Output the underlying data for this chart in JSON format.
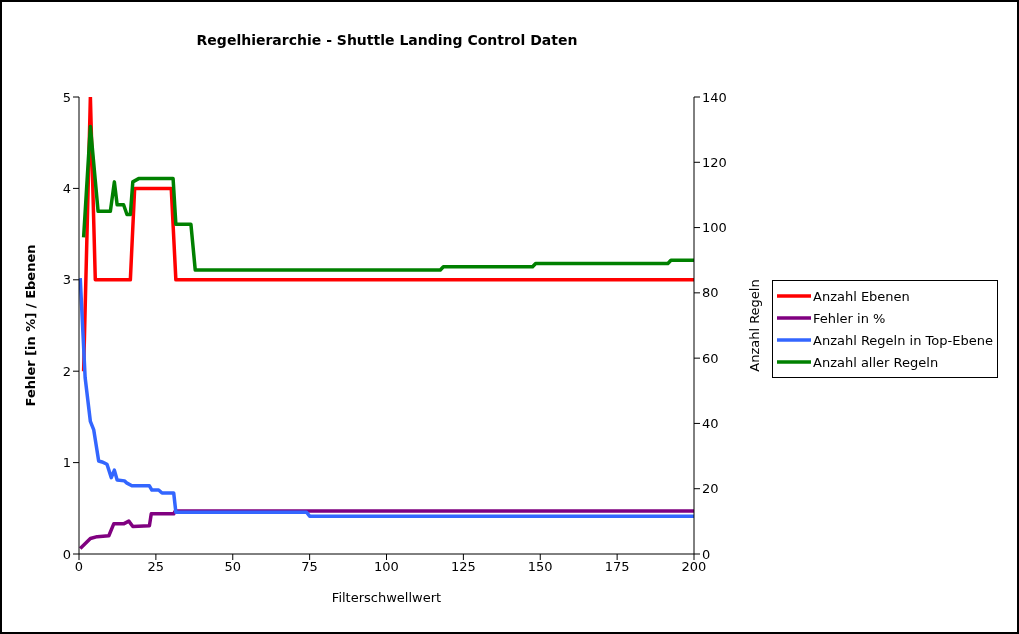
{
  "chart_data": {
    "type": "line",
    "title": "Regelhierarchie - Shuttle Landing Control Daten",
    "xlabel": "Filterschwellwert",
    "ylabel": "Fehler [in %] / Ebenen",
    "y2label": "Anzahl Regeln",
    "xlim": [
      0,
      200
    ],
    "xticks": [
      0,
      25,
      50,
      75,
      100,
      125,
      150,
      175,
      200
    ],
    "ylim": [
      0,
      5
    ],
    "yticks": [
      0,
      1,
      2,
      3,
      4,
      5
    ],
    "y2lim": [
      0,
      140
    ],
    "y2ticks": [
      0,
      20,
      40,
      60,
      80,
      100,
      120,
      140
    ],
    "legend": "right",
    "marker": "none",
    "series": [
      {
        "name": "Anzahl Ebenen",
        "color": "#ff0000",
        "x": [
          1.5,
          3.7,
          5.3,
          16.7,
          18.1,
          30,
          31.5,
          200
        ],
        "values": [
          2,
          5,
          3,
          3,
          4,
          4,
          3,
          3
        ]
      },
      {
        "name": "Fehler in %",
        "color": "#800080",
        "x": [
          0.4,
          3.7,
          5.9,
          9.7,
          11.3,
          14.5,
          16.2,
          17.5,
          22.9,
          23.5,
          30.8,
          31.3,
          200
        ],
        "values": [
          0.06,
          0.17,
          0.19,
          0.2,
          0.33,
          0.33,
          0.36,
          0.3,
          0.31,
          0.44,
          0.44,
          0.47,
          0.47
        ]
      },
      {
        "name": "Anzahl Regeln in Top-Ebene",
        "color": "#3366ff",
        "axis": "y2",
        "x": [
          0.4,
          2,
          3.7,
          4.8,
          6.4,
          7.5,
          9.1,
          10.5,
          11.5,
          12.4,
          14.8,
          15.6,
          17.2,
          22.9,
          23.7,
          25.9,
          27,
          30.8,
          31.5,
          74,
          75,
          200
        ],
        "values": [
          84.5,
          54,
          40.6,
          38,
          28.5,
          28.2,
          27.5,
          23.4,
          25.7,
          22.7,
          22.4,
          21.7,
          20.9,
          20.9,
          19.6,
          19.6,
          18.7,
          18.7,
          12.8,
          12.8,
          11.6,
          11.6
        ]
      },
      {
        "name": "Anzahl aller Regeln",
        "color": "#008000",
        "axis": "y2",
        "x": [
          1.5,
          3.7,
          6.2,
          10.2,
          11.5,
          12.4,
          14.5,
          15.6,
          16.7,
          17.5,
          19.4,
          30.6,
          31.5,
          36.4,
          37.8,
          117.5,
          118.5,
          147.5,
          148.5,
          191.5,
          192.5,
          200
        ],
        "values": [
          97,
          131,
          105,
          105,
          114,
          107,
          107,
          104,
          104,
          114,
          115,
          115,
          101,
          101,
          87,
          87,
          88,
          88,
          89,
          89,
          90,
          90
        ]
      }
    ]
  }
}
